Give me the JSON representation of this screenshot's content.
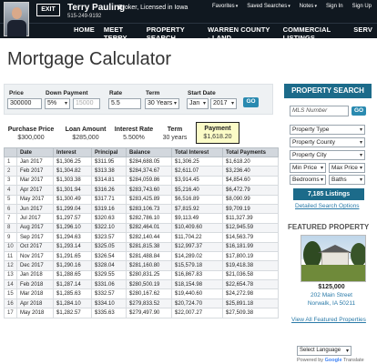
{
  "header": {
    "logo_text": "EXIT",
    "agent_name": "Terry Pauling",
    "agent_title": "Broker, Licensed in Iowa",
    "agent_phone": "515-249-9192",
    "links": [
      "Favorites",
      "Saved Searches",
      "Notes",
      "Sign In",
      "Sign Up"
    ],
    "nav": [
      "HOME",
      "MEET TERRY",
      "PROPERTY SEARCH",
      "WARREN COUNTY - LAND",
      "COMMERCIAL LISTINGS",
      "SERV"
    ]
  },
  "page": {
    "title": "Mortgage Calculator"
  },
  "form": {
    "price_label": "Price",
    "price_value": "300000",
    "down_label": "Down Payment",
    "down_pct": "5%",
    "down_value": "15000",
    "rate_label": "Rate",
    "rate_value": "5.5",
    "term_label": "Term",
    "term_value": "30 Years",
    "start_label": "Start Date",
    "start_month": "Jan",
    "start_year": "2017",
    "go_label": "GO"
  },
  "summary": {
    "purchase_label": "Purchase Price",
    "purchase_value": "$300,000",
    "loan_label": "Loan Amount",
    "loan_value": "$285,000",
    "rate_label": "Interest Rate",
    "rate_value": "5.500%",
    "term_label": "Term",
    "term_value": "30 years",
    "payment_label": "Payment",
    "payment_value": "$1,618.20"
  },
  "table": {
    "headers": [
      "",
      "Date",
      "Interest",
      "Principal",
      "Balance",
      "Total Interest",
      "Total Payments"
    ],
    "rows": [
      [
        "1",
        "Jan 2017",
        "$1,306.25",
        "$311.95",
        "$284,688.05",
        "$1,306.25",
        "$1,618.20"
      ],
      [
        "2",
        "Feb 2017",
        "$1,304.82",
        "$313.38",
        "$284,374.67",
        "$2,611.07",
        "$3,236.40"
      ],
      [
        "3",
        "Mar 2017",
        "$1,303.38",
        "$314.81",
        "$284,059.86",
        "$3,914.45",
        "$4,854.60"
      ],
      [
        "4",
        "Apr 2017",
        "$1,301.94",
        "$316.26",
        "$283,743.60",
        "$5,216.40",
        "$6,472.79"
      ],
      [
        "5",
        "May 2017",
        "$1,300.49",
        "$317.71",
        "$283,425.89",
        "$6,516.89",
        "$8,090.99"
      ],
      [
        "6",
        "Jun 2017",
        "$1,299.04",
        "$319.16",
        "$283,106.73",
        "$7,815.92",
        "$9,709.19"
      ],
      [
        "7",
        "Jul 2017",
        "$1,297.57",
        "$320.63",
        "$282,786.10",
        "$9,113.49",
        "$11,327.39"
      ],
      [
        "8",
        "Aug 2017",
        "$1,296.10",
        "$322.10",
        "$282,464.01",
        "$10,409.60",
        "$12,945.59"
      ],
      [
        "9",
        "Sep 2017",
        "$1,294.63",
        "$323.57",
        "$282,140.44",
        "$11,704.22",
        "$14,563.79"
      ],
      [
        "10",
        "Oct 2017",
        "$1,293.14",
        "$325.05",
        "$281,815.38",
        "$12,997.37",
        "$16,181.99"
      ],
      [
        "11",
        "Nov 2017",
        "$1,291.65",
        "$326.54",
        "$281,488.84",
        "$14,289.02",
        "$17,800.19"
      ],
      [
        "12",
        "Dec 2017",
        "$1,290.16",
        "$328.04",
        "$281,160.80",
        "$15,579.18",
        "$19,418.38"
      ],
      [
        "13",
        "Jan 2018",
        "$1,288.65",
        "$329.55",
        "$280,831.25",
        "$16,867.83",
        "$21,036.58"
      ],
      [
        "14",
        "Feb 2018",
        "$1,287.14",
        "$331.06",
        "$280,500.19",
        "$18,154.98",
        "$22,654.78"
      ],
      [
        "15",
        "Mar 2018",
        "$1,285.63",
        "$332.57",
        "$280,167.62",
        "$19,440.60",
        "$24,272.98"
      ],
      [
        "16",
        "Apr 2018",
        "$1,284.10",
        "$334.10",
        "$279,833.52",
        "$20,724.70",
        "$25,891.18"
      ],
      [
        "17",
        "May 2018",
        "$1,282.57",
        "$335.63",
        "$279,497.90",
        "$22,007.27",
        "$27,509.38"
      ]
    ]
  },
  "sidebar": {
    "search_button": "PROPERTY SEARCH",
    "mls_placeholder": "MLS Number",
    "go_label": "GO",
    "property_type": "Property Type",
    "property_county": "Property County",
    "property_city": "Property City",
    "min_price": "Min Price",
    "max_price": "Max Price",
    "bedrooms": "Bedrooms",
    "baths": "Baths",
    "listings_button": "7,185 Listings",
    "detailed_link": "Detailed Search Options",
    "featured_title": "FEATURED PROPERTY",
    "featured_price": "$125,000",
    "featured_street": "202 Main Street",
    "featured_city": "Norwalk, IA 50211",
    "view_all_link": "View All Featured Properties",
    "language": "Select Language",
    "powered_prefix": "Powered by",
    "powered_google": "Google",
    "powered_suffix": "Translate"
  }
}
